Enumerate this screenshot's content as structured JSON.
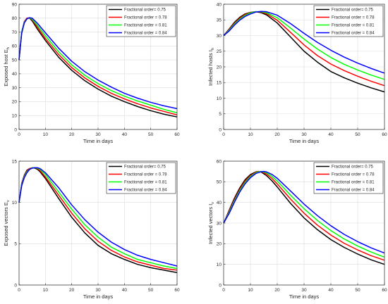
{
  "chart_data": [
    {
      "type": "line",
      "xlabel": "Time in days",
      "ylabel": "Exposed host E",
      "ylabel_sub": "h",
      "xlim": [
        0,
        60
      ],
      "ylim": [
        0,
        90
      ],
      "xticks": [
        0,
        10,
        20,
        30,
        40,
        50,
        60
      ],
      "yticks": [
        0,
        10,
        20,
        30,
        40,
        50,
        60,
        70,
        80,
        90
      ],
      "grid": true,
      "legend": "top-right",
      "series": [
        {
          "name": "Fractional order= 0.75",
          "color": "#000000",
          "x": [
            0,
            1,
            2,
            3,
            4,
            5,
            7,
            10,
            15,
            20,
            25,
            30,
            35,
            40,
            45,
            50,
            55,
            60
          ],
          "y": [
            50,
            70,
            77.5,
            80,
            80,
            78,
            72,
            64,
            52,
            42.5,
            35,
            29,
            24,
            20,
            16.5,
            13.5,
            11,
            9
          ]
        },
        {
          "name": "Fractional order = 0.78",
          "color": "#ff0000",
          "x": [
            0,
            1,
            2,
            3,
            4,
            5,
            7,
            10,
            15,
            20,
            25,
            30,
            35,
            40,
            45,
            50,
            55,
            60
          ],
          "y": [
            50,
            70,
            77.5,
            80,
            80.3,
            78.8,
            73.5,
            65.5,
            54,
            44.5,
            37,
            31,
            26,
            22,
            18.5,
            15.5,
            13,
            10.5
          ]
        },
        {
          "name": "Fractional order = 0.81",
          "color": "#00ff00",
          "x": [
            0,
            1,
            2,
            3,
            4,
            5,
            7,
            10,
            15,
            20,
            25,
            30,
            35,
            40,
            45,
            50,
            55,
            60
          ],
          "y": [
            50,
            70,
            77,
            79.5,
            80.3,
            79.3,
            74.8,
            67.5,
            56,
            46.5,
            39,
            33,
            28,
            24,
            20.5,
            17.5,
            14.5,
            12
          ]
        },
        {
          "name": "Fractional order = 0.84",
          "color": "#0000ff",
          "x": [
            0,
            1,
            2,
            3,
            4,
            5,
            7,
            10,
            15,
            20,
            25,
            30,
            35,
            40,
            45,
            50,
            55,
            60
          ],
          "y": [
            50,
            69,
            76.5,
            79.5,
            80.3,
            80,
            76.3,
            69.5,
            58.5,
            49,
            41.5,
            35.5,
            30.5,
            26,
            22.5,
            19.5,
            17,
            15
          ]
        }
      ]
    },
    {
      "type": "line",
      "xlabel": "Time in days",
      "ylabel": "Infected  hosts  I",
      "ylabel_sub": "h",
      "xlim": [
        0,
        60
      ],
      "ylim": [
        0,
        40
      ],
      "xticks": [
        0,
        10,
        20,
        30,
        40,
        50,
        60
      ],
      "yticks": [
        0,
        5,
        10,
        15,
        20,
        25,
        30,
        35,
        40
      ],
      "grid": true,
      "legend": "top-right",
      "series": [
        {
          "name": "Fractional order= 0.75",
          "color": "#000000",
          "x": [
            0,
            2,
            4,
            6,
            8,
            10,
            12,
            14,
            16,
            20,
            25,
            30,
            35,
            40,
            45,
            50,
            55,
            60
          ],
          "y": [
            30,
            32,
            34.2,
            35.8,
            36.9,
            37.4,
            37.6,
            37.3,
            36.6,
            34,
            29.5,
            25,
            21.5,
            18.5,
            16.5,
            14.8,
            13.3,
            12
          ]
        },
        {
          "name": "Fractional order = 0.78",
          "color": "#ff0000",
          "x": [
            0,
            2,
            4,
            6,
            8,
            10,
            12,
            14,
            16,
            20,
            25,
            30,
            35,
            40,
            45,
            50,
            55,
            60
          ],
          "y": [
            30,
            31.8,
            33.9,
            35.5,
            36.7,
            37.3,
            37.6,
            37.5,
            37,
            34.9,
            31,
            27,
            23.6,
            20.9,
            18.8,
            17,
            15.4,
            14
          ]
        },
        {
          "name": "Fractional order = 0.81",
          "color": "#00ff00",
          "x": [
            0,
            2,
            4,
            6,
            8,
            10,
            12,
            14,
            16,
            20,
            25,
            30,
            35,
            40,
            45,
            50,
            55,
            60
          ],
          "y": [
            30,
            31.6,
            33.6,
            35.2,
            36.4,
            37.2,
            37.6,
            37.6,
            37.3,
            35.7,
            32.4,
            28.9,
            25.7,
            23,
            20.8,
            19,
            17.4,
            16
          ]
        },
        {
          "name": "Fractional order = 0.84",
          "color": "#0000ff",
          "x": [
            0,
            2,
            4,
            6,
            8,
            10,
            12,
            14,
            16,
            20,
            25,
            30,
            35,
            40,
            45,
            50,
            55,
            60
          ],
          "y": [
            30,
            31.4,
            33.3,
            34.9,
            36.1,
            36.9,
            37.5,
            37.7,
            37.6,
            36.5,
            33.8,
            30.7,
            27.8,
            25.3,
            23.1,
            21.2,
            19.5,
            18
          ]
        }
      ]
    },
    {
      "type": "line",
      "xlabel": "Time in days",
      "ylabel": "Exposed vectors E",
      "ylabel_sub": "v",
      "xlim": [
        0,
        60
      ],
      "ylim": [
        0,
        15
      ],
      "xticks": [
        0,
        10,
        20,
        30,
        40,
        50,
        60
      ],
      "yticks": [
        0,
        5,
        10,
        15
      ],
      "grid": true,
      "legend": "top-right",
      "series": [
        {
          "name": "Fractional order= 0.75",
          "color": "#000000",
          "x": [
            0,
            1,
            2,
            3,
            4,
            5,
            6,
            7,
            8,
            10,
            15,
            20,
            25,
            30,
            35,
            40,
            45,
            50,
            55,
            60
          ],
          "y": [
            10,
            12.3,
            13.3,
            13.9,
            14.1,
            14.2,
            14.15,
            14,
            13.7,
            12.9,
            10.5,
            8.2,
            6.3,
            4.8,
            3.8,
            3.1,
            2.5,
            2.1,
            1.8,
            1.5
          ]
        },
        {
          "name": "Fractional order = 0.78",
          "color": "#ff0000",
          "x": [
            0,
            1,
            2,
            3,
            4,
            5,
            6,
            7,
            8,
            10,
            15,
            20,
            25,
            30,
            35,
            40,
            45,
            50,
            55,
            60
          ],
          "y": [
            10,
            12.2,
            13.2,
            13.8,
            14.1,
            14.2,
            14.2,
            14.1,
            13.85,
            13.1,
            10.9,
            8.7,
            6.8,
            5.3,
            4.2,
            3.4,
            2.8,
            2.4,
            2,
            1.8
          ]
        },
        {
          "name": "Fractional order = 0.81",
          "color": "#00ff00",
          "x": [
            0,
            1,
            2,
            3,
            4,
            5,
            6,
            7,
            8,
            10,
            15,
            20,
            25,
            30,
            35,
            40,
            45,
            50,
            55,
            60
          ],
          "y": [
            10,
            12.1,
            13.1,
            13.7,
            14,
            14.2,
            14.2,
            14.15,
            14,
            13.4,
            11.3,
            9.2,
            7.3,
            5.8,
            4.6,
            3.8,
            3.1,
            2.7,
            2.3,
            2
          ]
        },
        {
          "name": "Fractional order = 0.84",
          "color": "#0000ff",
          "x": [
            0,
            1,
            2,
            3,
            4,
            5,
            6,
            7,
            8,
            10,
            15,
            20,
            25,
            30,
            35,
            40,
            45,
            50,
            55,
            60
          ],
          "y": [
            10,
            12,
            13,
            13.6,
            14,
            14.15,
            14.2,
            14.2,
            14.1,
            13.6,
            11.8,
            9.7,
            7.9,
            6.4,
            5.2,
            4.3,
            3.6,
            3.1,
            2.7,
            2.3
          ]
        }
      ]
    },
    {
      "type": "line",
      "xlabel": "Time in days",
      "ylabel": "Infected vectors  I",
      "ylabel_sub": "v",
      "xlim": [
        0,
        60
      ],
      "ylim": [
        0,
        60
      ],
      "xticks": [
        0,
        10,
        20,
        30,
        40,
        50,
        60
      ],
      "yticks": [
        0,
        10,
        20,
        30,
        40,
        50,
        60
      ],
      "grid": true,
      "legend": "top-right",
      "series": [
        {
          "name": "Fractional order= 0.75",
          "color": "#000000",
          "x": [
            0,
            2,
            4,
            6,
            8,
            10,
            12,
            13,
            14,
            16,
            18,
            20,
            25,
            30,
            35,
            40,
            45,
            50,
            55,
            60
          ],
          "y": [
            30,
            36,
            42,
            47,
            51,
            53.5,
            54.8,
            55,
            54.7,
            53,
            50.5,
            47.5,
            39.5,
            32.5,
            26.8,
            22,
            18.2,
            15,
            12.2,
            10
          ]
        },
        {
          "name": "Fractional order = 0.78",
          "color": "#ff0000",
          "x": [
            0,
            2,
            4,
            6,
            8,
            10,
            12,
            13,
            14,
            16,
            18,
            20,
            25,
            30,
            35,
            40,
            45,
            50,
            55,
            60
          ],
          "y": [
            30,
            35.5,
            41.3,
            46.3,
            50.3,
            53,
            54.6,
            55,
            54.9,
            53.8,
            51.7,
            49,
            41.6,
            34.8,
            29,
            24.2,
            20.2,
            17,
            14.2,
            12
          ]
        },
        {
          "name": "Fractional order = 0.81",
          "color": "#00ff00",
          "x": [
            0,
            2,
            4,
            6,
            8,
            10,
            12,
            13,
            14,
            16,
            18,
            20,
            25,
            30,
            35,
            40,
            45,
            50,
            55,
            60
          ],
          "y": [
            30,
            35,
            40.6,
            45.6,
            49.6,
            52.5,
            54.3,
            54.8,
            55,
            54.4,
            52.7,
            50.4,
            43.5,
            37,
            31.3,
            26.4,
            22.3,
            18.9,
            16,
            13.5
          ]
        },
        {
          "name": "Fractional order = 0.84",
          "color": "#0000ff",
          "x": [
            0,
            2,
            4,
            6,
            8,
            10,
            12,
            14,
            15,
            16,
            18,
            20,
            25,
            30,
            35,
            40,
            45,
            50,
            55,
            60
          ],
          "y": [
            30,
            34.5,
            40,
            45,
            49,
            52,
            54,
            54.9,
            55,
            54.8,
            53.6,
            51.7,
            45.5,
            39.2,
            33.6,
            28.7,
            24.5,
            21,
            18,
            15.5
          ]
        }
      ]
    }
  ]
}
